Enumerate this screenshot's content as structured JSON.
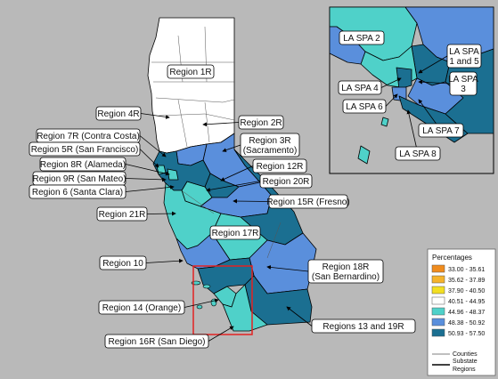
{
  "colors": {
    "background": "#b9b9b9",
    "class_40_51_44_95": "#ffffff",
    "class_44_96_48_37": "#4fd1c9",
    "class_48_38_50_92": "#5a8fdc",
    "class_50_93_57_50": "#1b6f91",
    "inset_frame": "#e32222",
    "county_line": "#555555",
    "region_line": "#000000"
  },
  "legend": {
    "title": "Percentages",
    "classes": [
      {
        "label": "33.00 - 35.61",
        "color": "#f08c1e"
      },
      {
        "label": "35.62 - 37.89",
        "color": "#f5b32c"
      },
      {
        "label": "37.90 - 40.50",
        "color": "#f3df22"
      },
      {
        "label": "40.51 - 44.95",
        "color": "#ffffff"
      },
      {
        "label": "44.96 - 48.37",
        "color": "#4fd1c9"
      },
      {
        "label": "48.38 - 50.92",
        "color": "#5a8fdc"
      },
      {
        "label": "50.93 - 57.50",
        "color": "#1b6f91"
      }
    ],
    "line_counties": "Counties",
    "line_regions": [
      "Substate",
      "Regions"
    ]
  },
  "labels": {
    "r1": [
      "Region 1R"
    ],
    "r4": [
      "Region 4R"
    ],
    "r2": [
      "Region 2R"
    ],
    "r7": [
      "Region 7R (Contra Costa)"
    ],
    "r5": [
      "Region 5R (San Francisco)"
    ],
    "r3": [
      "Region 3R",
      "(Sacramento)"
    ],
    "r8": [
      "Region 8R (Alameda)"
    ],
    "r12": [
      "Region 12R"
    ],
    "r9": [
      "Region 9R (San Mateo)"
    ],
    "r20": [
      "Region 20R"
    ],
    "r6": [
      "Region 6 (Santa Clara)"
    ],
    "r15": [
      "Region 15R (Fresno)"
    ],
    "r21": [
      "Region 21R"
    ],
    "r17": [
      "Region 17R"
    ],
    "r10": [
      "Region 10"
    ],
    "r18": [
      "Region 18R",
      "(San Bernardino)"
    ],
    "r14": [
      "Region 14 (Orange)"
    ],
    "r1319": [
      "Regions 13 and 19R"
    ],
    "r16": [
      "Region 16R (San Diego)"
    ],
    "spa2": [
      "LA SPA 2"
    ],
    "spa15": [
      "LA SPA",
      "1 and 5"
    ],
    "spa4": [
      "LA SPA 4"
    ],
    "spa3": [
      "LA SPA",
      "3"
    ],
    "spa6": [
      "LA SPA 6"
    ],
    "spa7": [
      "LA SPA 7"
    ],
    "spa8": [
      "LA SPA 8"
    ]
  }
}
